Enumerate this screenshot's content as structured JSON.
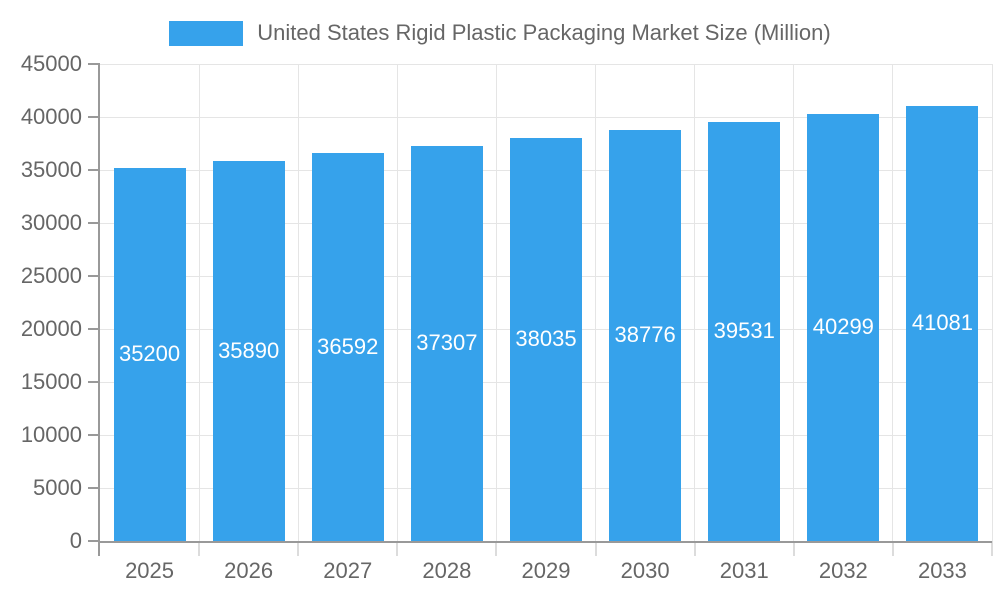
{
  "colors": {
    "bar": "#36A2EB",
    "grid": "#E5E5E5",
    "axis": "#999999",
    "x_tick": "#DCDCDC",
    "tick_text": "#666666",
    "data_label": "#FFFFFF",
    "background": "#FFFFFF"
  },
  "chart_data": {
    "type": "bar",
    "title": "United States Rigid Plastic Packaging Market Size (Million)",
    "legend_entries": [
      "United States Rigid Plastic Packaging Market Size (Million)"
    ],
    "legend_position": "top",
    "xlabel": "",
    "ylabel": "",
    "categories": [
      "2025",
      "2026",
      "2027",
      "2028",
      "2029",
      "2030",
      "2031",
      "2032",
      "2033"
    ],
    "values": [
      35200,
      35890,
      36592,
      37307,
      38035,
      38776,
      39531,
      40299,
      41081
    ],
    "data_labels_visible": true,
    "ylim": [
      0,
      45000
    ],
    "ytick_step": 5000,
    "yticks": [
      0,
      5000,
      10000,
      15000,
      20000,
      25000,
      30000,
      35000,
      40000,
      45000
    ],
    "grid": true
  }
}
